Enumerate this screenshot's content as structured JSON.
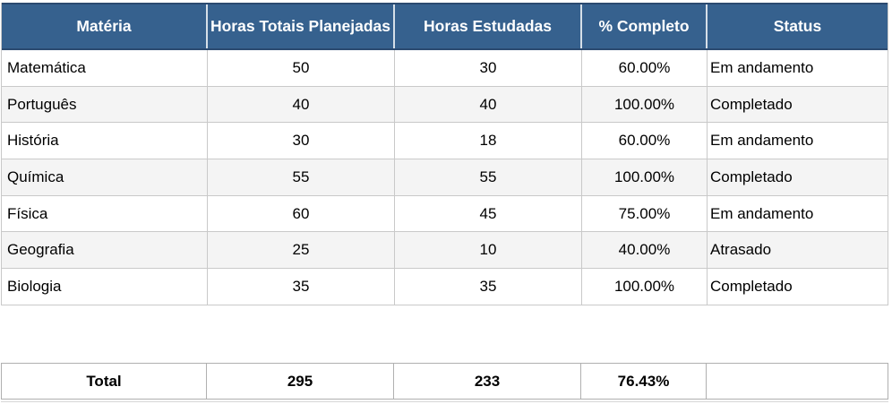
{
  "table": {
    "headers": {
      "materia": "Matéria",
      "horas_planejadas": "Horas Totais Planejadas",
      "horas_estudadas": "Horas Estudadas",
      "percent_completo": "% Completo",
      "status": "Status"
    },
    "rows": [
      {
        "materia": "Matemática",
        "planejadas": "50",
        "estudadas": "30",
        "completo": "60.00%",
        "status": "Em andamento"
      },
      {
        "materia": "Português",
        "planejadas": "40",
        "estudadas": "40",
        "completo": "100.00%",
        "status": "Completado"
      },
      {
        "materia": "História",
        "planejadas": "30",
        "estudadas": "18",
        "completo": "60.00%",
        "status": "Em andamento"
      },
      {
        "materia": "Química",
        "planejadas": "55",
        "estudadas": "55",
        "completo": "100.00%",
        "status": "Completado"
      },
      {
        "materia": "Física",
        "planejadas": "60",
        "estudadas": "45",
        "completo": "75.00%",
        "status": "Em andamento"
      },
      {
        "materia": "Geografia",
        "planejadas": "25",
        "estudadas": "10",
        "completo": "40.00%",
        "status": "Atrasado"
      },
      {
        "materia": "Biologia",
        "planejadas": "35",
        "estudadas": "35",
        "completo": "100.00%",
        "status": "Completado"
      }
    ],
    "total": {
      "label": "Total",
      "planejadas": "295",
      "estudadas": "233",
      "completo": "76.43%",
      "status": ""
    }
  },
  "colors": {
    "header_bg": "#36618E",
    "header_border": "#2B4A70",
    "grid_border": "#C9C9C9",
    "zebra_row": "#F4F4F4"
  }
}
